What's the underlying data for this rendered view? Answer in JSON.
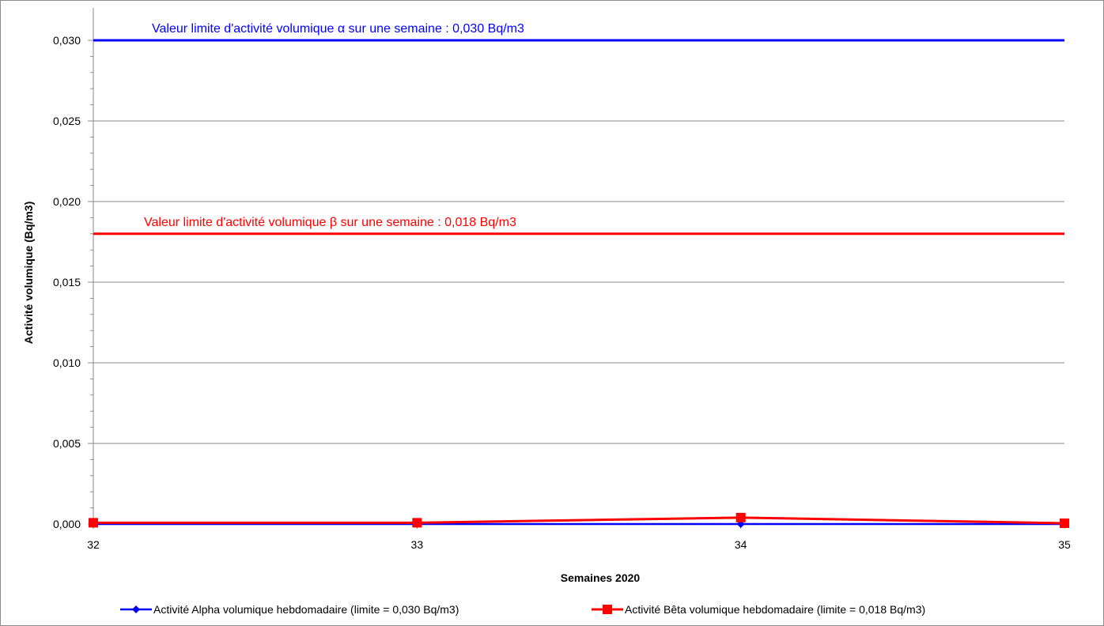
{
  "chart_data": {
    "type": "line",
    "xlabel": "Semaines 2020",
    "ylabel": "Activité volumique (Bq/m3)",
    "x": [
      32,
      33,
      34,
      35
    ],
    "x_tick_labels": [
      "32",
      "33",
      "34",
      "35"
    ],
    "xlim": [
      32,
      35
    ],
    "ylim": [
      0,
      0.03
    ],
    "y_ticks": [
      0,
      0.005,
      0.01,
      0.015,
      0.02,
      0.025,
      0.03
    ],
    "y_tick_labels": [
      "0,000",
      "0,005",
      "0,010",
      "0,015",
      "0,020",
      "0,025",
      "0,030"
    ],
    "grid": true,
    "legend_position": "bottom",
    "series": [
      {
        "name": "Activité Alpha volumique hebdomadaire (limite = 0,030 Bq/m3)",
        "color": "#0000ff",
        "marker": "diamond",
        "values": [
          0.0,
          0.0,
          0.0,
          0.0
        ]
      },
      {
        "name": "Activité Bêta volumique hebdomadaire (limite = 0,018 Bq/m3)",
        "color": "#ff0000",
        "marker": "square",
        "values": [
          8e-05,
          8e-05,
          0.0004,
          5e-05
        ]
      }
    ],
    "limits": [
      {
        "value": 0.03,
        "label": "Valeur limite d'activité volumique α sur une semaine : 0,030 Bq/m3",
        "color": "#0000ff"
      },
      {
        "value": 0.018,
        "label": "Valeur limite d'activité volumique β sur une semaine : 0,018 Bq/m3",
        "color": "#ff0000"
      }
    ]
  }
}
